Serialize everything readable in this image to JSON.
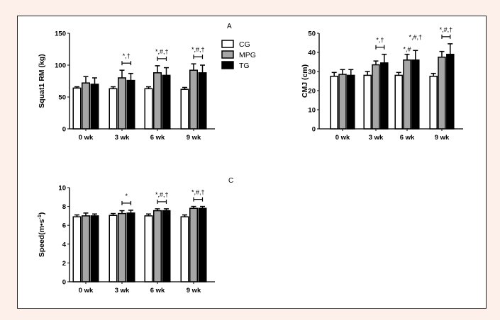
{
  "chart_data": [
    {
      "type": "bar",
      "panel_label": "A",
      "ylabel": "Squat1 RM (kg)",
      "categories": [
        "0 wk",
        "3 wk",
        "6 wk",
        "9 wk"
      ],
      "ylim": [
        0,
        150
      ],
      "yticks": [
        "0",
        "50",
        "100",
        "150"
      ],
      "ytick_values": [
        0,
        50,
        100,
        150
      ],
      "legend": {
        "placement": "right",
        "entries": [
          "CG",
          "MPG",
          "TG"
        ]
      },
      "series": [
        {
          "name": "CG",
          "values": [
            64,
            63,
            63,
            62
          ],
          "errors": [
            2,
            3,
            3,
            3
          ],
          "color": "#ffffff"
        },
        {
          "name": "MPG",
          "values": [
            72,
            80,
            88,
            92
          ],
          "errors": [
            10,
            12,
            11,
            10
          ],
          "color": "#a6a6a6"
        },
        {
          "name": "TG",
          "values": [
            70,
            76,
            84,
            88
          ],
          "errors": [
            10,
            11,
            12,
            12
          ],
          "color": "#000000"
        }
      ],
      "annotations": [
        {
          "category": "3 wk",
          "text": "*,†",
          "bracket": true
        },
        {
          "category": "6 wk",
          "text": "*,#,†",
          "bracket": true
        },
        {
          "category": "9 wk",
          "text": "*,#,†",
          "bracket": true
        }
      ]
    },
    {
      "type": "bar",
      "ylabel": "CMJ (cm)",
      "categories": [
        "0 wk",
        "3 wk",
        "6 wk",
        "9 wk"
      ],
      "ylim": [
        0,
        50
      ],
      "yticks": [
        "0",
        "10",
        "20",
        "30",
        "40",
        "50"
      ],
      "ytick_values": [
        0,
        10,
        20,
        30,
        40,
        50
      ],
      "series": [
        {
          "name": "CG",
          "values": [
            27.5,
            28,
            28,
            27.5
          ],
          "errors": [
            2,
            2,
            1.5,
            1.5
          ],
          "color": "#ffffff"
        },
        {
          "name": "MPG",
          "values": [
            28.5,
            33.5,
            36,
            37.5
          ],
          "errors": [
            2.5,
            2,
            3,
            3
          ],
          "color": "#a6a6a6"
        },
        {
          "name": "TG",
          "values": [
            28,
            34.5,
            36,
            39
          ],
          "errors": [
            3,
            4.5,
            5,
            5.5
          ],
          "color": "#000000"
        }
      ],
      "annotations": [
        {
          "category": "3 wk",
          "text": "*,†",
          "bracket": true
        },
        {
          "category": "6 wk",
          "text": "*,#",
          "bar": "MPG"
        },
        {
          "category": "6 wk",
          "text": "*,#,†",
          "bar": "TG"
        },
        {
          "category": "9 wk",
          "text": "*,#,†",
          "bracket": true
        }
      ]
    },
    {
      "type": "bar",
      "panel_label": "C",
      "ylabel": "Speed(m•s",
      "ylabel_sup": "-1",
      "ylabel_end": ")",
      "categories": [
        "0 wk",
        "3 wk",
        "6 wk",
        "9 wk"
      ],
      "ylim": [
        0,
        10
      ],
      "yticks": [
        "0",
        "2",
        "4",
        "6",
        "8",
        "10"
      ],
      "ytick_values": [
        0,
        2,
        4,
        6,
        8,
        10
      ],
      "series": [
        {
          "name": "CG",
          "values": [
            6.9,
            7.05,
            7.0,
            6.9
          ],
          "errors": [
            0.2,
            0.2,
            0.2,
            0.2
          ],
          "color": "#ffffff"
        },
        {
          "name": "MPG",
          "values": [
            7.0,
            7.25,
            7.55,
            7.8
          ],
          "errors": [
            0.3,
            0.3,
            0.2,
            0.2
          ],
          "color": "#a6a6a6"
        },
        {
          "name": "TG",
          "values": [
            7.0,
            7.3,
            7.55,
            7.8
          ],
          "errors": [
            0.2,
            0.3,
            0.2,
            0.2
          ],
          "color": "#000000"
        }
      ],
      "annotations": [
        {
          "category": "3 wk",
          "text": "*",
          "bracket": true
        },
        {
          "category": "6 wk",
          "text": "*,#,†",
          "bracket": true
        },
        {
          "category": "9 wk",
          "text": "*,#,†",
          "bracket": true
        }
      ]
    }
  ]
}
